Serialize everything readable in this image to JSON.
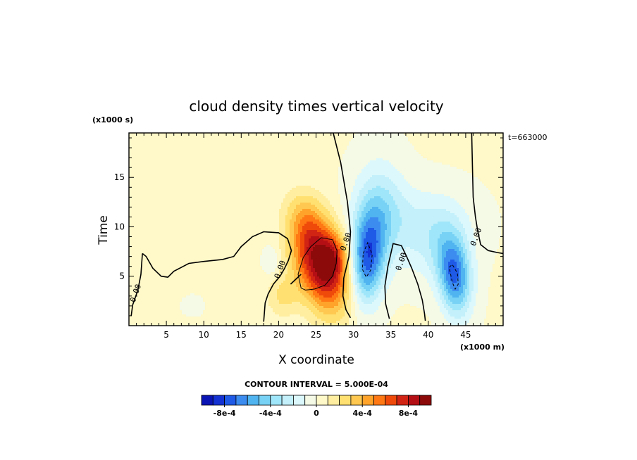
{
  "chart_data": {
    "type": "heatmap",
    "title": "cloud density times vertical velocity",
    "xlabel": "X coordinate",
    "ylabel": "Time",
    "x_units": "(x1000 m)",
    "y_units": "(x1000 s)",
    "time_stamp": "t=663000",
    "xlim": [
      0,
      50
    ],
    "ylim": [
      0,
      19.5
    ],
    "x_ticks": [
      5,
      10,
      15,
      20,
      25,
      30,
      35,
      40,
      45
    ],
    "y_ticks": [
      5,
      10,
      15
    ],
    "contour_interval_text": "CONTOUR INTERVAL = 5.000E-04",
    "contour_label": "0.00",
    "colorbar": {
      "colors": [
        "#0a14b4",
        "#1432d2",
        "#1e5ae6",
        "#3c8cf0",
        "#50b4f0",
        "#78d2f5",
        "#a0e6fa",
        "#c3f0fa",
        "#dcf8fc",
        "#f4fae6",
        "#fff8c8",
        "#ffeea0",
        "#ffe070",
        "#ffc850",
        "#ffa32b",
        "#ff7814",
        "#f04a0a",
        "#d22414",
        "#b40f14",
        "#8c0a0a"
      ],
      "tick_labels": [
        "-8e-4",
        "-4e-4",
        "0",
        "4e-4",
        "8e-4"
      ],
      "tick_values": [
        -0.0008,
        -0.0004,
        0,
        0.0004,
        0.0008
      ],
      "range": [
        -0.001,
        0.001
      ]
    },
    "features": [
      {
        "name": "positive maximum",
        "x": 26.5,
        "y": 6.5,
        "value": 0.0009
      },
      {
        "name": "negative minimum",
        "x": 31.8,
        "y": 6.3,
        "value": -0.0007
      },
      {
        "name": "negative minimum",
        "x": 43.5,
        "y": 5.0,
        "value": -0.0007
      }
    ],
    "field_model": {
      "background": 1.2e-05,
      "blobs": [
        {
          "x": 25.8,
          "y": 6.0,
          "sx": 2.3,
          "sy": 3.4,
          "rot": 0.5,
          "amp": 0.00095
        },
        {
          "x": 27.5,
          "y": 7.2,
          "sx": 1.3,
          "sy": 1.6,
          "rot": 0.0,
          "amp": 0.00025
        },
        {
          "x": 24.0,
          "y": 10.2,
          "sx": 1.8,
          "sy": 2.0,
          "rot": 0.0,
          "amp": 0.00022
        },
        {
          "x": 20.5,
          "y": 3.0,
          "sx": 1.5,
          "sy": 1.5,
          "rot": 0.0,
          "amp": 0.0002
        },
        {
          "x": 22.5,
          "y": 12.0,
          "sx": 1.5,
          "sy": 1.5,
          "rot": 0.0,
          "amp": 8e-05
        },
        {
          "x": 31.8,
          "y": 6.6,
          "sx": 1.6,
          "sy": 3.2,
          "rot": -0.1,
          "amp": -0.00072
        },
        {
          "x": 33.5,
          "y": 11.5,
          "sx": 2.4,
          "sy": 3.6,
          "rot": 0.0,
          "amp": -0.00032
        },
        {
          "x": 43.5,
          "y": 5.0,
          "sx": 1.5,
          "sy": 2.8,
          "rot": 0.15,
          "amp": -0.00068
        },
        {
          "x": 41.0,
          "y": 8.5,
          "sx": 3.2,
          "sy": 2.8,
          "rot": 0.0,
          "amp": -0.00022
        },
        {
          "x": 38.5,
          "y": 11.0,
          "sx": 5.0,
          "sy": 2.5,
          "rot": 0.0,
          "amp": -0.0001
        },
        {
          "x": 19.0,
          "y": 6.5,
          "sx": 0.7,
          "sy": 1.0,
          "rot": 0.0,
          "amp": -0.00014
        },
        {
          "x": 8.5,
          "y": 2.0,
          "sx": 1.0,
          "sy": 0.7,
          "rot": 0.0,
          "amp": -5e-05
        }
      ]
    },
    "zero_contours": [
      {
        "points": [
          [
            1.8,
            7.3
          ],
          [
            2.3,
            7.0
          ],
          [
            3.2,
            5.8
          ],
          [
            4.3,
            5.0
          ],
          [
            5.2,
            4.9
          ],
          [
            6.0,
            5.5
          ],
          [
            8.0,
            6.3
          ],
          [
            10.0,
            6.5
          ],
          [
            12.5,
            6.7
          ],
          [
            14.0,
            7.0
          ],
          [
            15.0,
            8.0
          ],
          [
            16.5,
            9.0
          ],
          [
            18.0,
            9.5
          ],
          [
            20.0,
            9.4
          ],
          [
            21.2,
            8.8
          ],
          [
            21.7,
            7.6
          ],
          [
            21.3,
            6.6
          ],
          [
            20.8,
            5.8
          ],
          [
            20.2,
            5.0
          ],
          [
            19.3,
            4.2
          ],
          [
            18.6,
            3.2
          ],
          [
            18.2,
            2.3
          ],
          [
            18.1,
            1.3
          ],
          [
            18.0,
            0.4
          ]
        ]
      },
      {
        "points": [
          [
            1.8,
            7.3
          ],
          [
            1.6,
            5.2
          ],
          [
            1.2,
            3.6
          ],
          [
            0.5,
            2.1
          ],
          [
            0.3,
            1.0
          ]
        ]
      },
      {
        "points": [
          [
            27.3,
            19.5
          ],
          [
            28.3,
            16.5
          ],
          [
            29.2,
            12.5
          ],
          [
            29.6,
            9.5
          ],
          [
            29.4,
            7.0
          ],
          [
            28.7,
            4.8
          ],
          [
            28.6,
            3.0
          ],
          [
            29.0,
            1.6
          ],
          [
            29.6,
            0.8
          ]
        ]
      },
      {
        "points": [
          [
            45.8,
            19.5
          ],
          [
            45.9,
            16.0
          ],
          [
            46.0,
            13.0
          ],
          [
            46.3,
            11.0
          ],
          [
            46.6,
            9.6
          ],
          [
            47.0,
            8.2
          ],
          [
            48.0,
            7.6
          ],
          [
            49.2,
            7.4
          ],
          [
            50,
            7.3
          ]
        ]
      },
      {
        "points": [
          [
            34.8,
            0.7
          ],
          [
            34.3,
            2.2
          ],
          [
            34.2,
            4.0
          ],
          [
            34.6,
            6.0
          ],
          [
            35.3,
            8.3
          ],
          [
            36.4,
            8.1
          ],
          [
            37.1,
            7.0
          ],
          [
            37.8,
            5.8
          ],
          [
            38.6,
            4.2
          ],
          [
            39.2,
            2.6
          ],
          [
            39.5,
            1.2
          ],
          [
            39.6,
            0.5
          ]
        ]
      },
      {
        "points": [
          [
            21.6,
            4.2
          ],
          [
            23.0,
            5.2
          ]
        ]
      }
    ],
    "dashed_contours": [
      {
        "points": [
          [
            31.3,
            7.3
          ],
          [
            31.9,
            8.4
          ],
          [
            32.5,
            7.2
          ],
          [
            32.3,
            5.6
          ],
          [
            31.7,
            4.9
          ],
          [
            31.2,
            5.7
          ],
          [
            31.3,
            7.3
          ]
        ]
      },
      {
        "points": [
          [
            42.8,
            5.9
          ],
          [
            43.2,
            6.2
          ],
          [
            43.9,
            5.3
          ],
          [
            44.0,
            4.2
          ],
          [
            43.6,
            3.7
          ],
          [
            43.2,
            4.4
          ],
          [
            42.8,
            5.9
          ]
        ]
      }
    ],
    "positive_contours": [
      {
        "points": [
          [
            23.0,
            3.8
          ],
          [
            22.6,
            5.2
          ],
          [
            23.3,
            6.9
          ],
          [
            24.3,
            8.0
          ],
          [
            25.7,
            8.9
          ],
          [
            27.2,
            8.7
          ],
          [
            27.8,
            7.6
          ],
          [
            27.7,
            6.3
          ],
          [
            27.2,
            5.0
          ],
          [
            26.2,
            4.1
          ],
          [
            24.8,
            3.7
          ],
          [
            23.6,
            3.6
          ],
          [
            23.0,
            3.8
          ]
        ]
      }
    ],
    "labels_on_contours": [
      {
        "x": 1.2,
        "y": 3.2
      },
      {
        "x": 20.5,
        "y": 5.6
      },
      {
        "x": 29.3,
        "y": 8.4
      },
      {
        "x": 36.7,
        "y": 6.4
      },
      {
        "x": 46.7,
        "y": 8.9
      }
    ]
  }
}
